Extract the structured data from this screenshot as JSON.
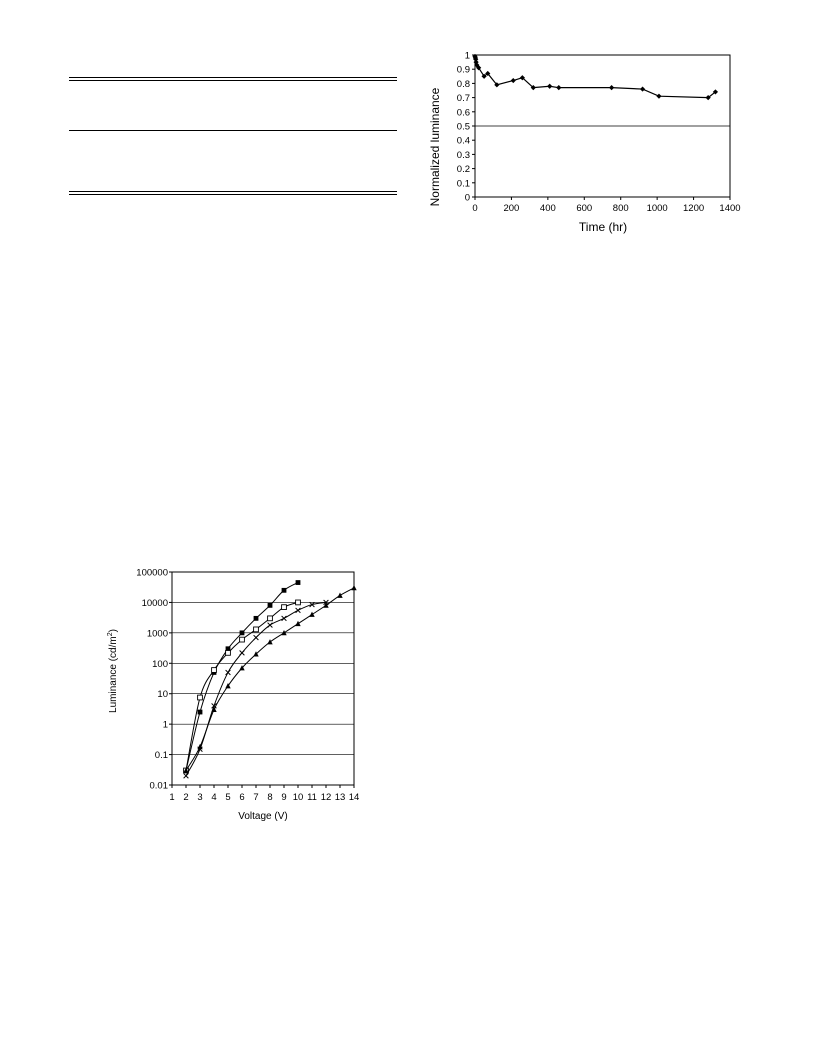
{
  "chart_data": [
    {
      "type": "line",
      "title": "",
      "xlabel": "Time (hr)",
      "ylabel": "Normalized luminance",
      "xlim": [
        0,
        1400
      ],
      "ylim": [
        0,
        1
      ],
      "x_ticks": [
        0,
        200,
        400,
        600,
        800,
        1000,
        1200,
        1400
      ],
      "y_ticks": [
        0,
        0.1,
        0.2,
        0.3,
        0.4,
        0.5,
        0.6,
        0.7,
        0.8,
        0.9,
        1
      ],
      "reference_lines": [
        0.5
      ],
      "grid": false,
      "series": [
        {
          "marker": "diamond",
          "x": [
            0,
            2,
            4,
            6,
            10,
            20,
            50,
            70,
            120,
            210,
            260,
            320,
            410,
            460,
            750,
            920,
            1010,
            1280,
            1320
          ],
          "y": [
            0.99,
            0.98,
            0.97,
            0.95,
            0.93,
            0.91,
            0.85,
            0.87,
            0.79,
            0.82,
            0.84,
            0.77,
            0.78,
            0.77,
            0.77,
            0.76,
            0.71,
            0.7,
            0.74
          ]
        }
      ]
    },
    {
      "type": "line",
      "title": "",
      "xlabel": "Voltage (V)",
      "ylabel": "Luminance (cd/m",
      "ylabel_superscript": "2",
      "ylabel_suffix": ")",
      "yscale": "log",
      "xlim": [
        1,
        14
      ],
      "ylim": [
        0.01,
        100000
      ],
      "x_ticks": [
        1,
        2,
        3,
        4,
        5,
        6,
        7,
        8,
        9,
        10,
        11,
        12,
        13,
        14
      ],
      "y_ticks": [
        0.01,
        0.1,
        1,
        10,
        100,
        1000,
        10000,
        100000
      ],
      "y_tick_labels": [
        "0.01",
        "0.1",
        "1",
        "10",
        "100",
        "1000",
        "10000",
        "100000"
      ],
      "grid": "horizontal",
      "series": [
        {
          "marker": "filled-square",
          "x": [
            2,
            3,
            4,
            5,
            6,
            7,
            8,
            9,
            10
          ],
          "y": [
            0.03,
            2.5,
            50,
            300,
            1000,
            3000,
            8000,
            25000,
            45000
          ]
        },
        {
          "marker": "open-square",
          "x": [
            2,
            3,
            4,
            5,
            6,
            7,
            8,
            9,
            10
          ],
          "y": [
            0.03,
            7.5,
            60,
            220,
            600,
            1300,
            3000,
            7000,
            10000
          ]
        },
        {
          "marker": "cross",
          "x": [
            2,
            3,
            4,
            5,
            6,
            7,
            8,
            9,
            10,
            11,
            12
          ],
          "y": [
            0.02,
            0.15,
            4,
            50,
            220,
            700,
            1800,
            3000,
            5500,
            8500,
            10000
          ]
        },
        {
          "marker": "filled-triangle",
          "x": [
            2,
            3,
            4,
            5,
            6,
            7,
            8,
            9,
            10,
            11,
            12,
            13,
            14
          ],
          "y": [
            0.03,
            0.18,
            3,
            18,
            70,
            200,
            500,
            1000,
            2000,
            4000,
            8000,
            17000,
            30000
          ]
        }
      ]
    }
  ]
}
